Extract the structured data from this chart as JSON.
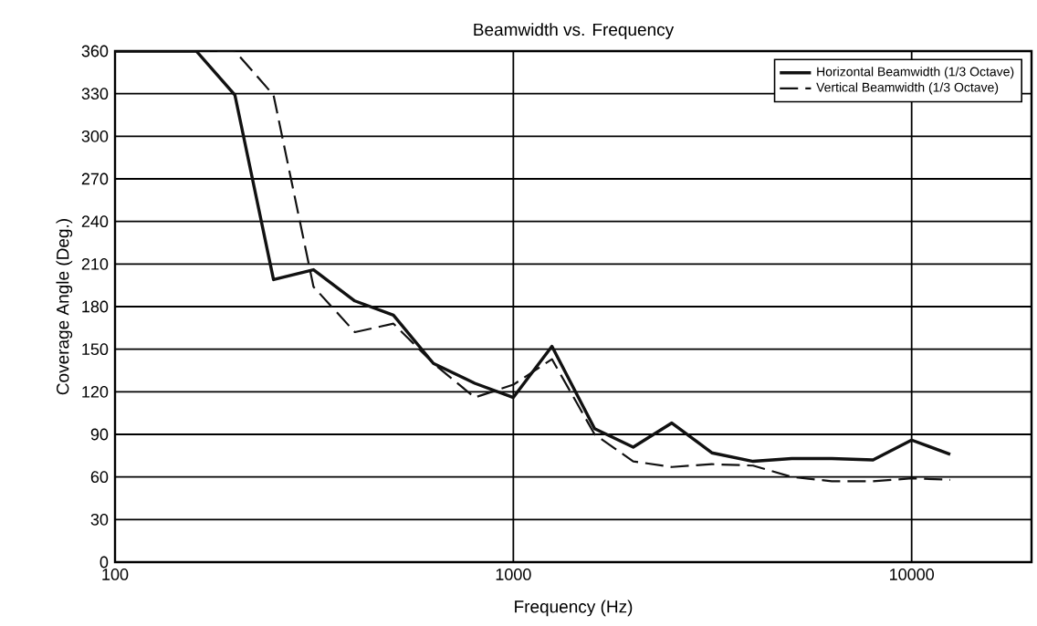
{
  "chart_data": {
    "type": "line",
    "title": "Beamwidth vs. Frequency",
    "xlabel": "Frequency (Hz)",
    "ylabel": "Coverage Angle (Deg.)",
    "x": [
      100,
      125,
      160,
      200,
      250,
      315,
      400,
      500,
      630,
      800,
      1000,
      1250,
      1600,
      2000,
      2500,
      3150,
      4000,
      5000,
      6300,
      8000,
      10000,
      12500
    ],
    "series": [
      {
        "name": "Horizontal Beamwidth (1/3 Octave)",
        "color": "#111111",
        "line_style": "solid",
        "values": [
          360,
          360,
          360,
          329,
          199,
          206,
          184,
          174,
          140,
          126,
          116,
          152,
          94,
          81,
          98,
          77,
          71,
          73,
          73,
          72,
          86,
          76
        ]
      },
      {
        "name": "Vertical Beamwidth (1/3 Octave)",
        "color": "#111111",
        "line_style": "dashed",
        "values": [
          360,
          360,
          360,
          360,
          329,
          194,
          162,
          168,
          140,
          116,
          125,
          143,
          90,
          71,
          67,
          69,
          68,
          60,
          57,
          57,
          59,
          58
        ]
      }
    ],
    "log": "x",
    "xlim": [
      100,
      20000
    ],
    "xticks": [
      100,
      1000,
      10000
    ],
    "ylim": [
      0,
      360
    ],
    "yticks": [
      0,
      30,
      60,
      90,
      120,
      150,
      180,
      210,
      240,
      270,
      300,
      330,
      360
    ],
    "grid": true,
    "legend": "top right",
    "marker": "none"
  }
}
